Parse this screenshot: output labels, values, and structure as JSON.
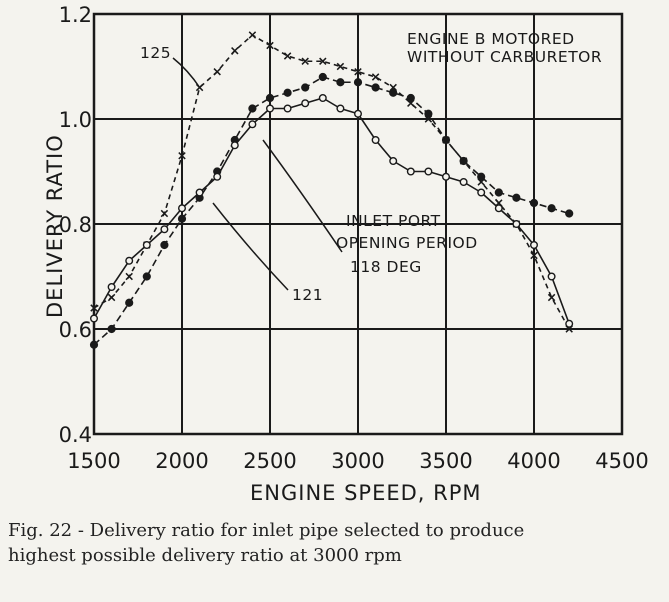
{
  "chart_data": {
    "type": "line",
    "title": "",
    "xlabel": "ENGINE SPEED, RPM",
    "ylabel": "DELIVERY RATIO",
    "xlim": [
      1500,
      4500
    ],
    "ylim": [
      0.4,
      1.2
    ],
    "x_ticks": [
      "1500",
      "2000",
      "2500",
      "3000",
      "3500",
      "4000",
      "4500"
    ],
    "y_ticks": [
      "0.4",
      "0.6",
      "0.8",
      "1.0",
      "1.2"
    ],
    "grid": true,
    "annotations": {
      "engine_note_line1": "ENGINE B MOTORED",
      "engine_note_line2": "WITHOUT CARBURETOR",
      "inlet_line1": "INLET PORT",
      "inlet_line2": "OPENING PERIOD",
      "label_118": "118 DEG",
      "label_125": "125",
      "label_121": "121"
    },
    "series": [
      {
        "marker": "x",
        "x": [
          1500,
          1600,
          1700,
          1800,
          1900,
          2000,
          2100,
          2200,
          2300,
          2400,
          2500,
          2600,
          2700,
          2800,
          2900,
          3000,
          3100,
          3200,
          3300,
          3400,
          3500,
          3600,
          3700,
          3800,
          3900,
          4000,
          4100,
          4200
        ],
        "y": [
          0.64,
          0.66,
          0.7,
          0.76,
          0.82,
          0.93,
          1.06,
          1.09,
          1.13,
          1.16,
          1.14,
          1.12,
          1.11,
          1.11,
          1.1,
          1.09,
          1.08,
          1.06,
          1.03,
          1.0,
          0.96,
          0.92,
          0.88,
          0.84,
          0.8,
          0.74,
          0.66,
          0.6
        ]
      },
      {
        "marker": "filled-circle",
        "x": [
          1500,
          1600,
          1700,
          1800,
          1900,
          2000,
          2100,
          2200,
          2300,
          2400,
          2500,
          2600,
          2700,
          2800,
          2900,
          3000,
          3100,
          3200,
          3300,
          3400,
          3500,
          3600,
          3700,
          3800,
          3900,
          4000,
          4100,
          4200
        ],
        "y": [
          0.57,
          0.6,
          0.65,
          0.7,
          0.76,
          0.81,
          0.85,
          0.9,
          0.96,
          1.02,
          1.04,
          1.05,
          1.06,
          1.08,
          1.07,
          1.07,
          1.06,
          1.05,
          1.04,
          1.01,
          0.96,
          0.92,
          0.89,
          0.86,
          0.85,
          0.84,
          0.83,
          0.82
        ]
      },
      {
        "marker": "open-circle",
        "x": [
          1500,
          1600,
          1700,
          1800,
          1900,
          2000,
          2100,
          2200,
          2300,
          2400,
          2500,
          2600,
          2700,
          2800,
          2900,
          3000,
          3100,
          3200,
          3300,
          3400,
          3500,
          3600,
          3700,
          3800,
          3900,
          4000,
          4100,
          4200
        ],
        "y": [
          0.62,
          0.68,
          0.73,
          0.76,
          0.79,
          0.83,
          0.86,
          0.89,
          0.95,
          0.99,
          1.02,
          1.02,
          1.03,
          1.04,
          1.02,
          1.01,
          0.96,
          0.92,
          0.9,
          0.9,
          0.89,
          0.88,
          0.86,
          0.83,
          0.8,
          0.76,
          0.7,
          0.61
        ]
      }
    ]
  },
  "caption": {
    "line1": "Fig. 22 - Delivery ratio for inlet pipe selected to produce",
    "line2": "highest possible delivery ratio at 3000 rpm"
  }
}
